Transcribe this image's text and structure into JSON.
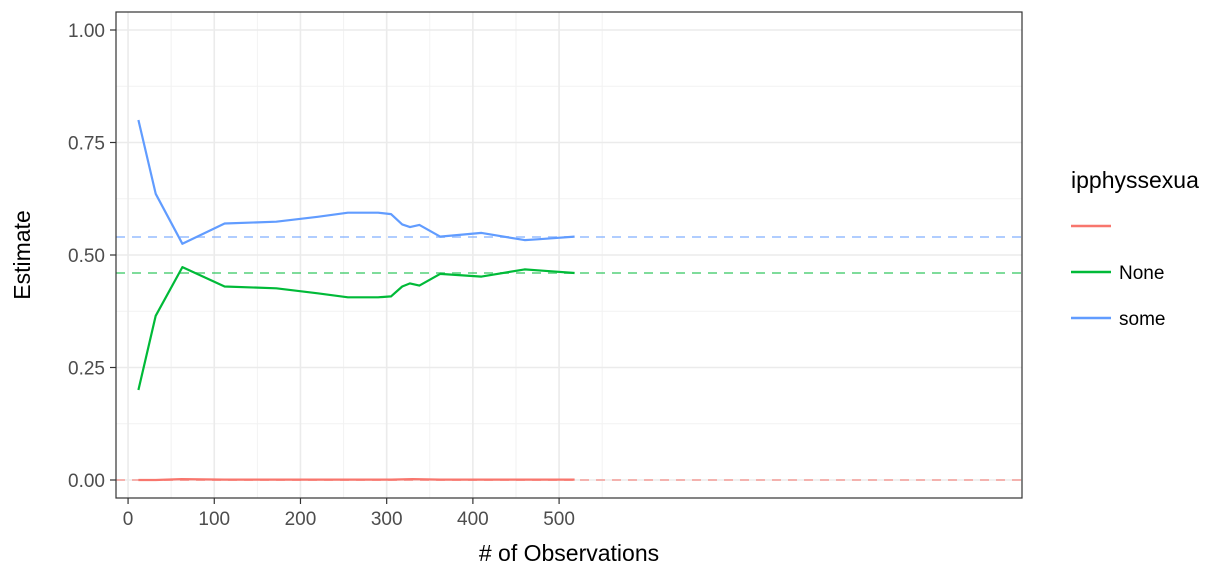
{
  "chart_data": {
    "type": "line",
    "xlabel": "# of Observations",
    "ylabel": "Estimate",
    "xlim": [
      -14,
      1037
    ],
    "ylim": [
      -0.04,
      1.04
    ],
    "x_ticks": [
      0,
      100,
      200,
      300,
      400,
      500
    ],
    "x_tick_labels": [
      "0",
      "100",
      "200",
      "300",
      "400",
      "500"
    ],
    "y_ticks": [
      0.0,
      0.25,
      0.5,
      0.75,
      1.0
    ],
    "y_tick_labels": [
      "0.00",
      "0.25",
      "0.50",
      "0.75",
      "1.00"
    ],
    "grid": true,
    "legend": {
      "title": "ipphyssexua",
      "position": "right"
    },
    "series": [
      {
        "name": "",
        "color": "#F8766D",
        "x": [
          12,
          32,
          62,
          112,
          172,
          255,
          290,
          305,
          330,
          362,
          410,
          460,
          518
        ],
        "values": [
          0.0,
          0.0,
          0.002,
          0.001,
          0.001,
          0.001,
          0.001,
          0.001,
          0.002,
          0.001,
          0.001,
          0.001,
          0.001
        ],
        "reference": 0.0
      },
      {
        "name": "None",
        "color": "#00BA38",
        "x": [
          12,
          32,
          63,
          112,
          172,
          220,
          255,
          290,
          305,
          318,
          327,
          338,
          362,
          410,
          460,
          475,
          518
        ],
        "values": [
          0.2,
          0.365,
          0.473,
          0.43,
          0.426,
          0.415,
          0.406,
          0.406,
          0.408,
          0.43,
          0.437,
          0.432,
          0.458,
          0.452,
          0.468,
          0.466,
          0.46
        ],
        "reference": 0.46
      },
      {
        "name": "some",
        "color": "#619CFF",
        "x": [
          12,
          32,
          63,
          112,
          172,
          220,
          255,
          290,
          305,
          318,
          327,
          338,
          362,
          410,
          460,
          475,
          518
        ],
        "values": [
          0.8,
          0.636,
          0.525,
          0.57,
          0.574,
          0.585,
          0.594,
          0.594,
          0.591,
          0.568,
          0.562,
          0.567,
          0.541,
          0.549,
          0.533,
          0.535,
          0.541
        ],
        "reference": 0.54
      }
    ]
  }
}
